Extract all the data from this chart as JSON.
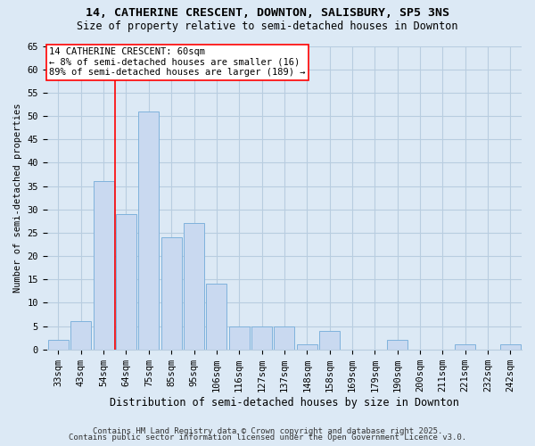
{
  "title1": "14, CATHERINE CRESCENT, DOWNTON, SALISBURY, SP5 3NS",
  "title2": "Size of property relative to semi-detached houses in Downton",
  "xlabel": "Distribution of semi-detached houses by size in Downton",
  "ylabel": "Number of semi-detached properties",
  "categories": [
    "33sqm",
    "43sqm",
    "54sqm",
    "64sqm",
    "75sqm",
    "85sqm",
    "95sqm",
    "106sqm",
    "116sqm",
    "127sqm",
    "137sqm",
    "148sqm",
    "158sqm",
    "169sqm",
    "179sqm",
    "190sqm",
    "200sqm",
    "211sqm",
    "221sqm",
    "232sqm",
    "242sqm"
  ],
  "values": [
    2,
    6,
    36,
    29,
    51,
    24,
    27,
    14,
    5,
    5,
    5,
    1,
    4,
    0,
    0,
    2,
    0,
    0,
    1,
    0,
    1
  ],
  "bar_color": "#c9d9f0",
  "bar_edge_color": "#7fb2dc",
  "grid_color": "#b8cde0",
  "background_color": "#dce9f5",
  "annotation_line1": "14 CATHERINE CRESCENT: 60sqm",
  "annotation_line2": "← 8% of semi-detached houses are smaller (16)",
  "annotation_line3": "89% of semi-detached houses are larger (189) →",
  "red_line_x": 2.5,
  "annotation_box_color": "white",
  "annotation_box_edge_color": "red",
  "red_line_color": "red",
  "footer1": "Contains HM Land Registry data © Crown copyright and database right 2025.",
  "footer2": "Contains public sector information licensed under the Open Government Licence v3.0.",
  "ylim": [
    0,
    65
  ],
  "yticks": [
    0,
    5,
    10,
    15,
    20,
    25,
    30,
    35,
    40,
    45,
    50,
    55,
    60,
    65
  ],
  "title1_fontsize": 9.5,
  "title2_fontsize": 8.5,
  "xlabel_fontsize": 8.5,
  "ylabel_fontsize": 7.5,
  "tick_fontsize": 7.5,
  "annotation_fontsize": 7.5,
  "footer_fontsize": 6.5
}
